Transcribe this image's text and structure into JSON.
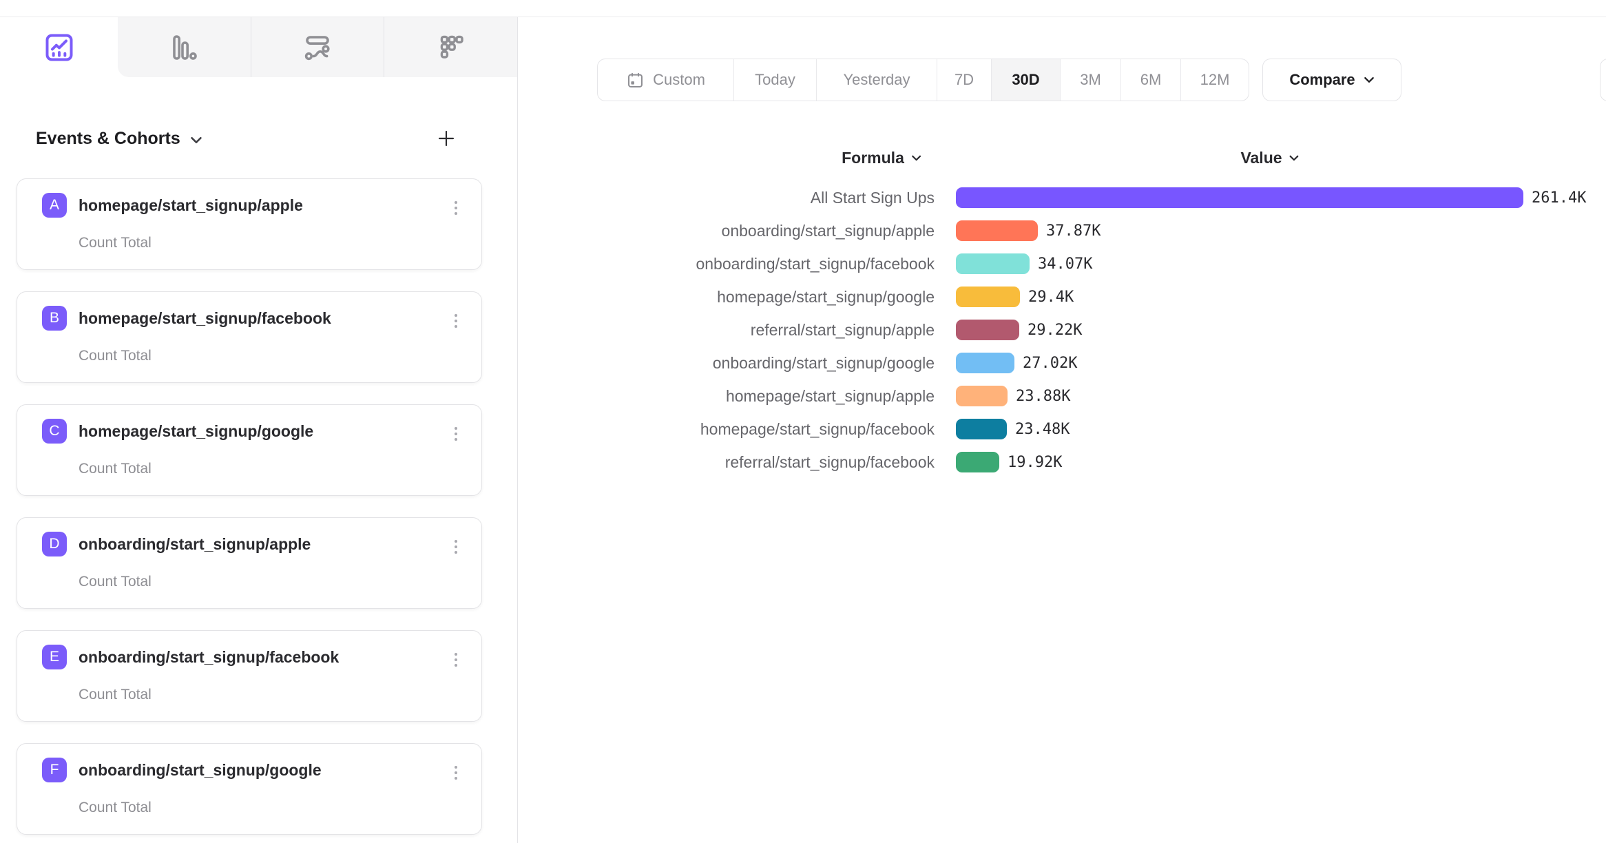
{
  "app": {
    "accent_color": "#7b5cfa"
  },
  "toolbar_tabs": [
    {
      "name": "insights-line-chart",
      "icon": "line-chart-icon",
      "active": true
    },
    {
      "name": "bar-chart",
      "icon": "bar-chart-icon",
      "active": false
    },
    {
      "name": "flow",
      "icon": "flow-icon",
      "active": false
    },
    {
      "name": "grid",
      "icon": "dot-grid-icon",
      "active": false
    }
  ],
  "sidebar": {
    "title": "Events & Cohorts",
    "title_chevron_icon": "chevron-down-icon",
    "add_icon": "plus-icon",
    "items": [
      {
        "badge": "A",
        "label": "homepage/start_signup/apple",
        "subtitle": "Count Total"
      },
      {
        "badge": "B",
        "label": "homepage/start_signup/facebook",
        "subtitle": "Count Total"
      },
      {
        "badge": "C",
        "label": "homepage/start_signup/google",
        "subtitle": "Count Total"
      },
      {
        "badge": "D",
        "label": "onboarding/start_signup/apple",
        "subtitle": "Count Total"
      },
      {
        "badge": "E",
        "label": "onboarding/start_signup/facebook",
        "subtitle": "Count Total"
      },
      {
        "badge": "F",
        "label": "onboarding/start_signup/google",
        "subtitle": "Count Total"
      }
    ],
    "badge_color": "#7b5cfa"
  },
  "datebar": {
    "calendar_icon": "calendar-icon",
    "ranges": [
      "Custom",
      "Today",
      "Yesterday",
      "7D",
      "30D",
      "3M",
      "6M",
      "12M"
    ],
    "selected": "30D",
    "compare_label": "Compare",
    "compare_chevron_icon": "chevron-down-icon"
  },
  "chart_data": {
    "type": "bar",
    "orientation": "horizontal",
    "column_headers": [
      "Formula",
      "Value"
    ],
    "categories": [
      "All Start Sign Ups",
      "onboarding/start_signup/apple",
      "onboarding/start_signup/facebook",
      "homepage/start_signup/google",
      "referral/start_signup/apple",
      "onboarding/start_signup/google",
      "homepage/start_signup/apple",
      "homepage/start_signup/facebook",
      "referral/start_signup/facebook"
    ],
    "values": [
      261400,
      37870,
      34070,
      29400,
      29220,
      27020,
      23880,
      23480,
      19920
    ],
    "value_labels": [
      "261.4K",
      "37.87K",
      "34.07K",
      "29.4K",
      "29.22K",
      "27.02K",
      "23.88K",
      "23.48K",
      "19.92K"
    ],
    "colors": [
      "#7856FF",
      "#FF7557",
      "#80E1D9",
      "#F8BC3B",
      "#B2596E",
      "#72BEF4",
      "#FFB27A",
      "#0D7EA0",
      "#3BA974"
    ],
    "xlim": [
      0,
      261400
    ],
    "grid": false,
    "legend": false
  }
}
